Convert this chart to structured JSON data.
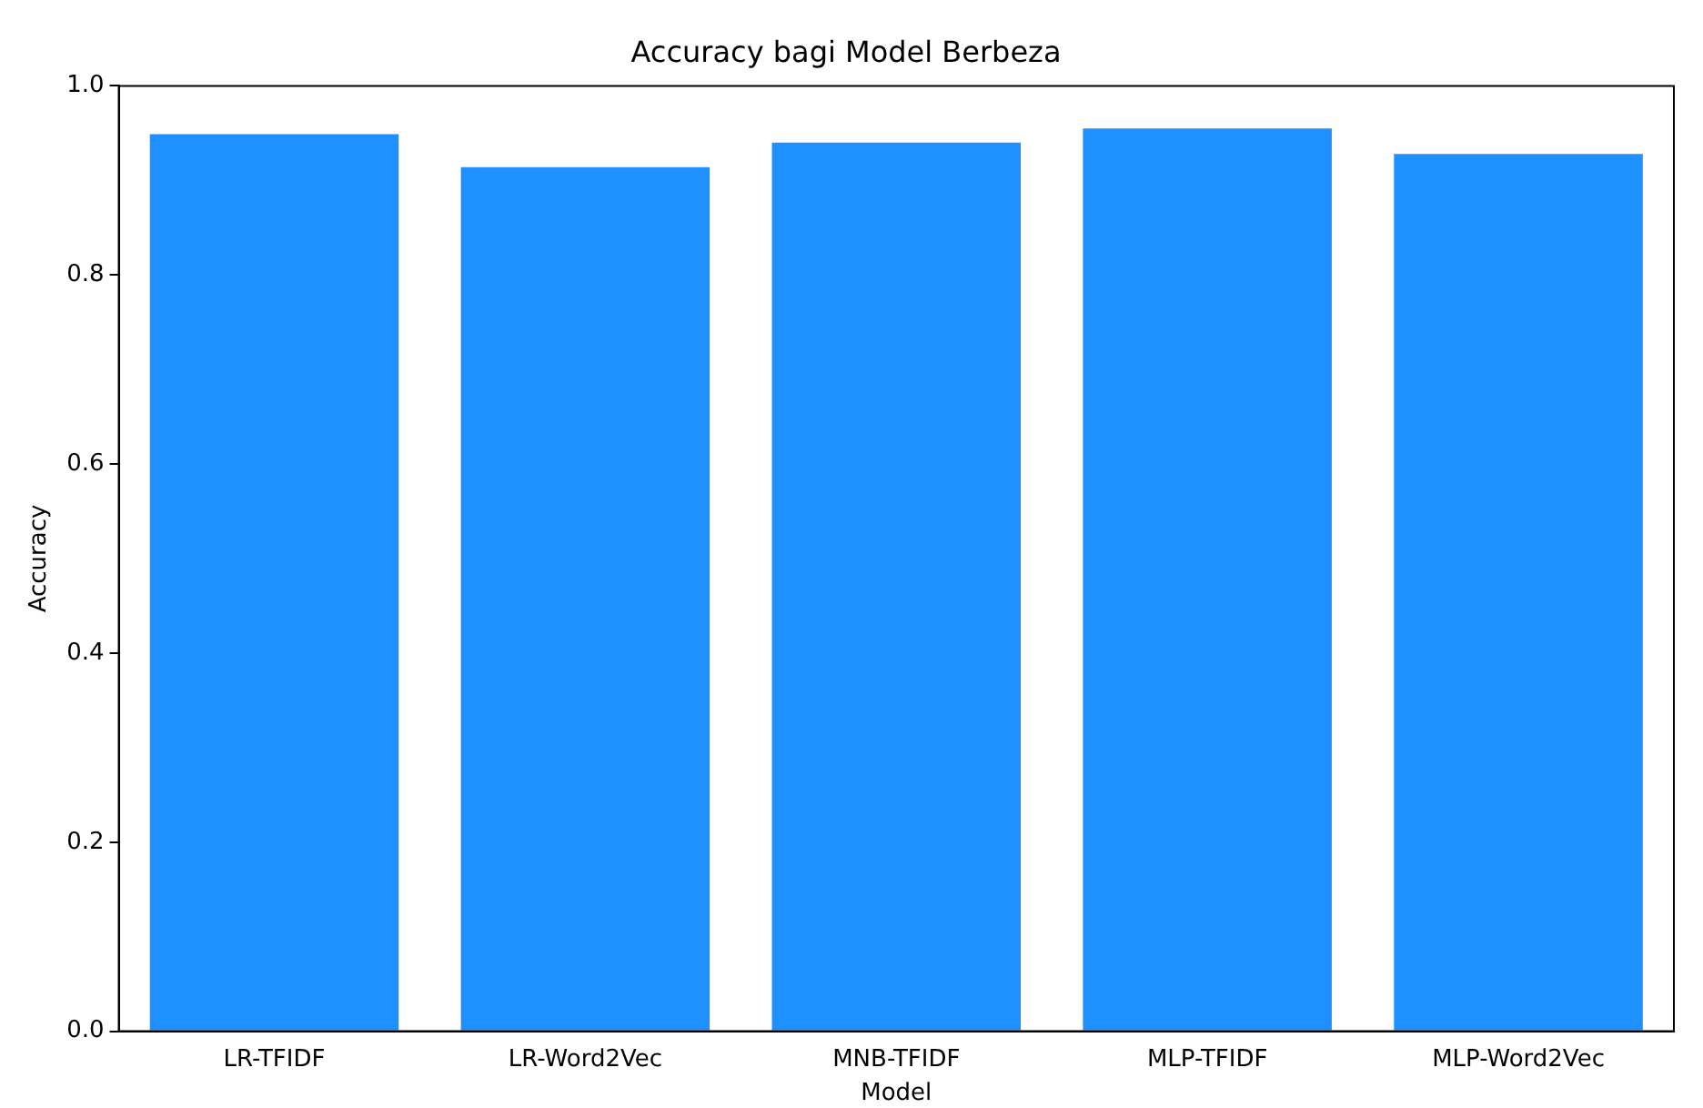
{
  "chart_data": {
    "type": "bar",
    "title": "Accuracy bagi Model Berbeza",
    "xlabel": "Model",
    "ylabel": "Accuracy",
    "categories": [
      "LR-TFIDF",
      "LR-Word2Vec",
      "MNB-TFIDF",
      "MLP-TFIDF",
      "MLP-Word2Vec"
    ],
    "values": [
      0.949,
      0.914,
      0.94,
      0.955,
      0.928
    ],
    "color": "#1e90ff",
    "ylim": [
      0,
      1
    ],
    "yticks": [
      {
        "value": 0,
        "label": "0.0"
      },
      {
        "value": 0.2,
        "label": "0.2"
      },
      {
        "value": 0.4,
        "label": "0.4"
      },
      {
        "value": 0.6,
        "label": "0.6"
      },
      {
        "value": 0.8,
        "label": "0.8"
      },
      {
        "value": 1,
        "label": "1.0"
      }
    ],
    "grid": false,
    "legend": false
  }
}
